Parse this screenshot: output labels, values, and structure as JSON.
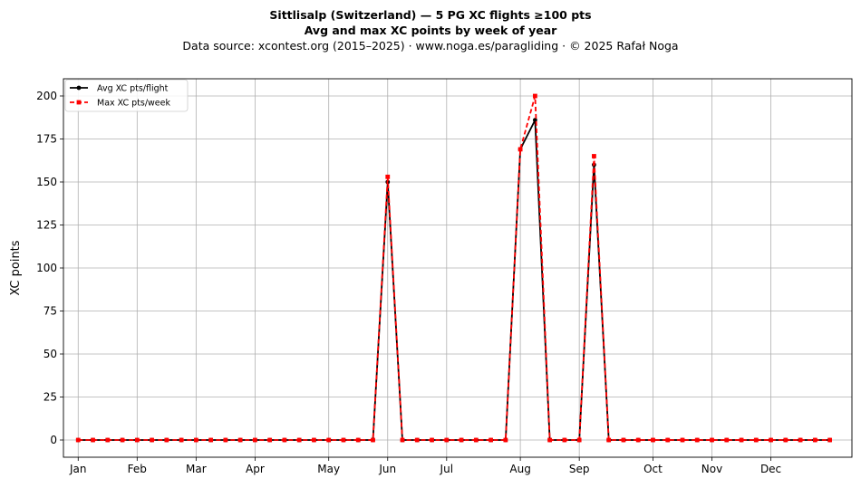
{
  "chart_data": {
    "type": "line",
    "title": "Sittlisalp (Switzerland)  —  5 PG XC flights ≥100 pts",
    "subtitle": "Avg and max XC points by week of year",
    "source": "Data source: xcontest.org (2015–2025)  ·  www.noga.es/paragliding  ·  © 2025 Rafał Noga",
    "xlabel": "",
    "ylabel": "XC points",
    "ylim": [
      -10,
      210
    ],
    "xlim": [
      0,
      53.5
    ],
    "yticks": [
      0,
      25,
      50,
      75,
      100,
      125,
      150,
      175,
      200
    ],
    "xticks": [
      {
        "label": "Jan",
        "x": 1
      },
      {
        "label": "Feb",
        "x": 5
      },
      {
        "label": "Mar",
        "x": 9
      },
      {
        "label": "Apr",
        "x": 13
      },
      {
        "label": "May",
        "x": 18
      },
      {
        "label": "Jun",
        "x": 22
      },
      {
        "label": "Jul",
        "x": 26
      },
      {
        "label": "Aug",
        "x": 31
      },
      {
        "label": "Sep",
        "x": 35
      },
      {
        "label": "Oct",
        "x": 40
      },
      {
        "label": "Nov",
        "x": 44
      },
      {
        "label": "Dec",
        "x": 48
      }
    ],
    "grid": true,
    "legend_position": "top-left",
    "x": [
      1,
      2,
      3,
      4,
      5,
      6,
      7,
      8,
      9,
      10,
      11,
      12,
      13,
      14,
      15,
      16,
      17,
      18,
      19,
      20,
      21,
      22,
      23,
      24,
      25,
      26,
      27,
      28,
      29,
      30,
      31,
      32,
      33,
      34,
      35,
      36,
      37,
      38,
      39,
      40,
      41,
      42,
      43,
      44,
      45,
      46,
      47,
      48,
      49,
      50,
      51,
      52
    ],
    "series": [
      {
        "name": "Avg XC pts/flight",
        "color": "#000000",
        "style": "solid",
        "marker": "circle",
        "values": [
          0,
          0,
          0,
          0,
          0,
          0,
          0,
          0,
          0,
          0,
          0,
          0,
          0,
          0,
          0,
          0,
          0,
          0,
          0,
          0,
          0,
          150,
          0,
          0,
          0,
          0,
          0,
          0,
          0,
          0,
          169,
          186,
          0,
          0,
          0,
          160,
          0,
          0,
          0,
          0,
          0,
          0,
          0,
          0,
          0,
          0,
          0,
          0,
          0,
          0,
          0,
          0
        ]
      },
      {
        "name": "Max XC pts/week",
        "color": "#ff0000",
        "style": "dashed",
        "marker": "square",
        "values": [
          0,
          0,
          0,
          0,
          0,
          0,
          0,
          0,
          0,
          0,
          0,
          0,
          0,
          0,
          0,
          0,
          0,
          0,
          0,
          0,
          0,
          153,
          0,
          0,
          0,
          0,
          0,
          0,
          0,
          0,
          169,
          200,
          0,
          0,
          0,
          165,
          0,
          0,
          0,
          0,
          0,
          0,
          0,
          0,
          0,
          0,
          0,
          0,
          0,
          0,
          0,
          0
        ]
      }
    ]
  }
}
